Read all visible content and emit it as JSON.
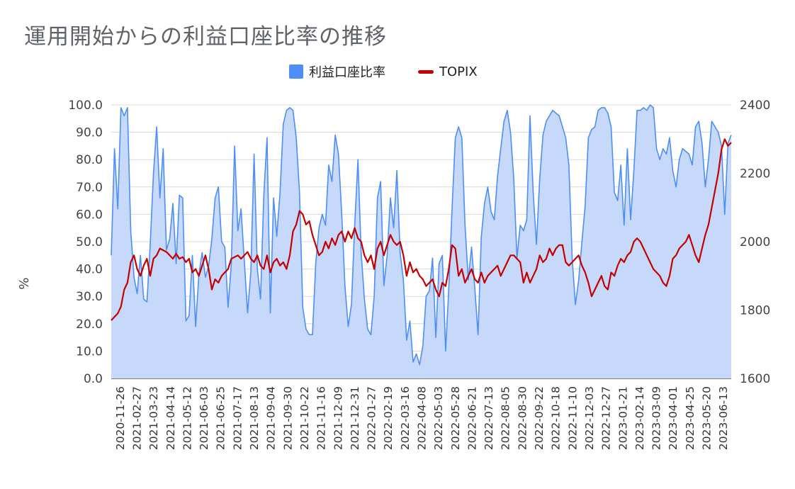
{
  "chart_data": {
    "type": "line",
    "title": "運用開始からの利益口座比率の推移",
    "ylabel": "%",
    "ylabel_right": "",
    "ylim": [
      0,
      100
    ],
    "y2lim": [
      1600,
      2400
    ],
    "y_ticks": [
      "0.0",
      "10.0",
      "20.0",
      "30.0",
      "40.0",
      "50.0",
      "60.0",
      "70.0",
      "80.0",
      "90.0",
      "100.0"
    ],
    "y2_ticks": [
      "1600",
      "1800",
      "2000",
      "2200",
      "2400"
    ],
    "grid": true,
    "legend": "top-center",
    "x_tick_labels": [
      "2020-11-26",
      "2021-02-27",
      "2021-03-23",
      "2021-04-14",
      "2021-05-12",
      "2021-06-03",
      "2021-06-25",
      "2021-07-17",
      "2021-08-13",
      "2021-09-04",
      "2021-09-30",
      "2021-10-22",
      "2021-11-16",
      "2021-12-09",
      "2021-12-31",
      "2022-01-27",
      "2022-02-19",
      "2022-03-16",
      "2022-04-08",
      "2022-05-03",
      "2022-05-28",
      "2022-06-21",
      "2022-07-13",
      "2022-08-05",
      "2022-08-30",
      "2022-09-22",
      "2022-10-18",
      "2022-11-10",
      "2022-12-03",
      "2022-12-27",
      "2023-01-21",
      "2023-02-14",
      "2023-03-09",
      "2023-04-01",
      "2023-04-25",
      "2023-05-20",
      "2023-06-13"
    ],
    "series": [
      {
        "name": "利益口座比率",
        "axis": "left",
        "color": "#4e8ef7",
        "fill": "#c6d9fb",
        "values": [
          45,
          84,
          62,
          99,
          96,
          99,
          54,
          37,
          31,
          45,
          29,
          28,
          49,
          75,
          92,
          66,
          84,
          47,
          51,
          64,
          42,
          67,
          66,
          21,
          23,
          45,
          19,
          38,
          46,
          37,
          41,
          51,
          66,
          70,
          50,
          48,
          26,
          42,
          85,
          54,
          62,
          43,
          24,
          39,
          82,
          40,
          29,
          67,
          88,
          24,
          66,
          52,
          68,
          93,
          98,
          99,
          98,
          88,
          68,
          26,
          18,
          16,
          16,
          42,
          55,
          60,
          56,
          78,
          72,
          89,
          82,
          60,
          34,
          19,
          27,
          56,
          80,
          46,
          29,
          18,
          16,
          30,
          66,
          72,
          34,
          45,
          66,
          55,
          76,
          46,
          36,
          14,
          21,
          6,
          9,
          5,
          12,
          30,
          32,
          44,
          15,
          42,
          45,
          10,
          33,
          62,
          88,
          92,
          88,
          56,
          36,
          48,
          33,
          16,
          52,
          64,
          70,
          61,
          58,
          74,
          84,
          94,
          98,
          90,
          73,
          44,
          56,
          54,
          58,
          96,
          68,
          49,
          73,
          89,
          94,
          96,
          98,
          97,
          96,
          92,
          88,
          78,
          44,
          27,
          36,
          50,
          63,
          88,
          91,
          92,
          98,
          99,
          99,
          97,
          92,
          68,
          65,
          78,
          56,
          84,
          58,
          76,
          98,
          98,
          99,
          98,
          100,
          99,
          84,
          80,
          84,
          82,
          88,
          76,
          70,
          80,
          84,
          83,
          82,
          78,
          92,
          94,
          86,
          70,
          80,
          94,
          92,
          90,
          85,
          60,
          86,
          89
        ],
        "note": ""
      },
      {
        "name": "TOPIX",
        "axis": "right",
        "color": "#c40000",
        "values": [
          1770,
          1780,
          1790,
          1810,
          1860,
          1880,
          1940,
          1960,
          1920,
          1900,
          1930,
          1950,
          1900,
          1950,
          1960,
          1980,
          1975,
          1970,
          1960,
          1950,
          1965,
          1950,
          1955,
          1940,
          1950,
          1910,
          1920,
          1900,
          1930,
          1960,
          1920,
          1860,
          1890,
          1880,
          1900,
          1910,
          1920,
          1950,
          1955,
          1960,
          1950,
          1960,
          1970,
          1950,
          1940,
          1960,
          1930,
          1920,
          1960,
          1910,
          1940,
          1950,
          1930,
          1940,
          1920,
          1960,
          2030,
          2050,
          2090,
          2080,
          2050,
          2060,
          2020,
          1990,
          1960,
          1970,
          2000,
          1980,
          2010,
          1990,
          2020,
          2030,
          2000,
          2030,
          2010,
          2040,
          2010,
          2000,
          1960,
          1940,
          1960,
          1920,
          1980,
          2000,
          1960,
          1990,
          2020,
          2000,
          1990,
          2000,
          1960,
          1900,
          1940,
          1910,
          1920,
          1900,
          1890,
          1870,
          1880,
          1890,
          1860,
          1840,
          1880,
          1870,
          1920,
          1990,
          1980,
          1900,
          1920,
          1880,
          1900,
          1920,
          1890,
          1880,
          1910,
          1880,
          1900,
          1910,
          1920,
          1930,
          1900,
          1920,
          1940,
          1960,
          1960,
          1950,
          1940,
          1880,
          1910,
          1880,
          1900,
          1920,
          1960,
          1940,
          1950,
          1980,
          1960,
          1980,
          1990,
          1990,
          1940,
          1930,
          1940,
          1950,
          1960,
          1930,
          1910,
          1880,
          1840,
          1860,
          1880,
          1900,
          1870,
          1860,
          1910,
          1900,
          1930,
          1950,
          1940,
          1960,
          1970,
          2000,
          2010,
          2000,
          1980,
          1960,
          1940,
          1920,
          1910,
          1900,
          1880,
          1870,
          1900,
          1950,
          1960,
          1980,
          1990,
          2000,
          2020,
          1990,
          1960,
          1940,
          1980,
          2020,
          2050,
          2100,
          2150,
          2200,
          2270,
          2300,
          2280,
          2290
        ]
      }
    ]
  }
}
